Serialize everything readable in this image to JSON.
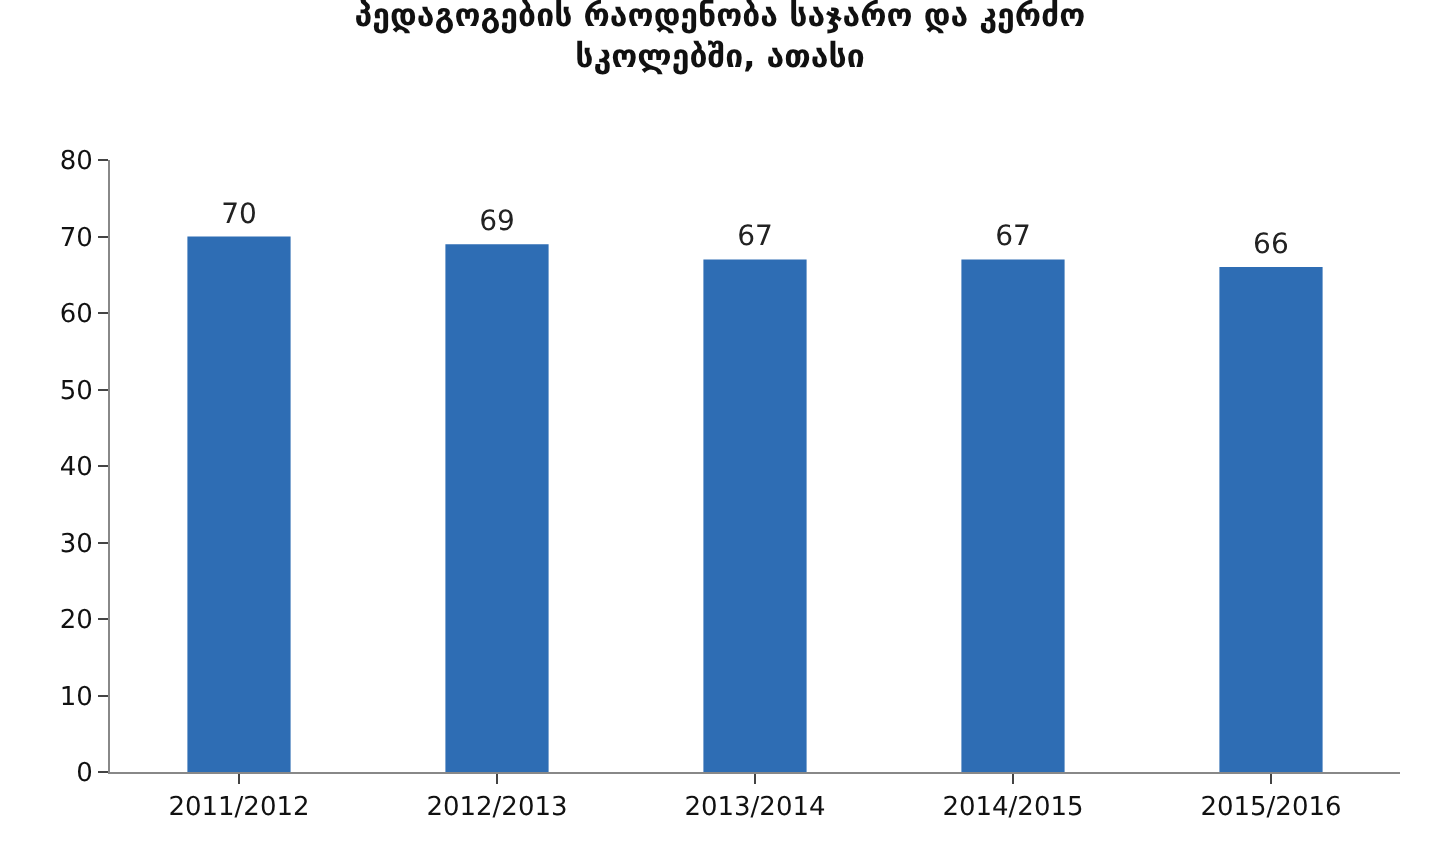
{
  "chart_data": {
    "type": "bar",
    "title": "პედაგოგების რაოდენობა საჯარო და კერძო სკოლებში, ათასი",
    "categories": [
      "2011/2012",
      "2012/2013",
      "2013/2014",
      "2014/2015",
      "2015/2016"
    ],
    "values": [
      70,
      69,
      67,
      67,
      66
    ],
    "color": "#2e6db4",
    "ylim": [
      0,
      80
    ],
    "yticks": [
      0,
      10,
      20,
      30,
      40,
      50,
      60,
      70,
      80
    ],
    "data_labels": true
  }
}
